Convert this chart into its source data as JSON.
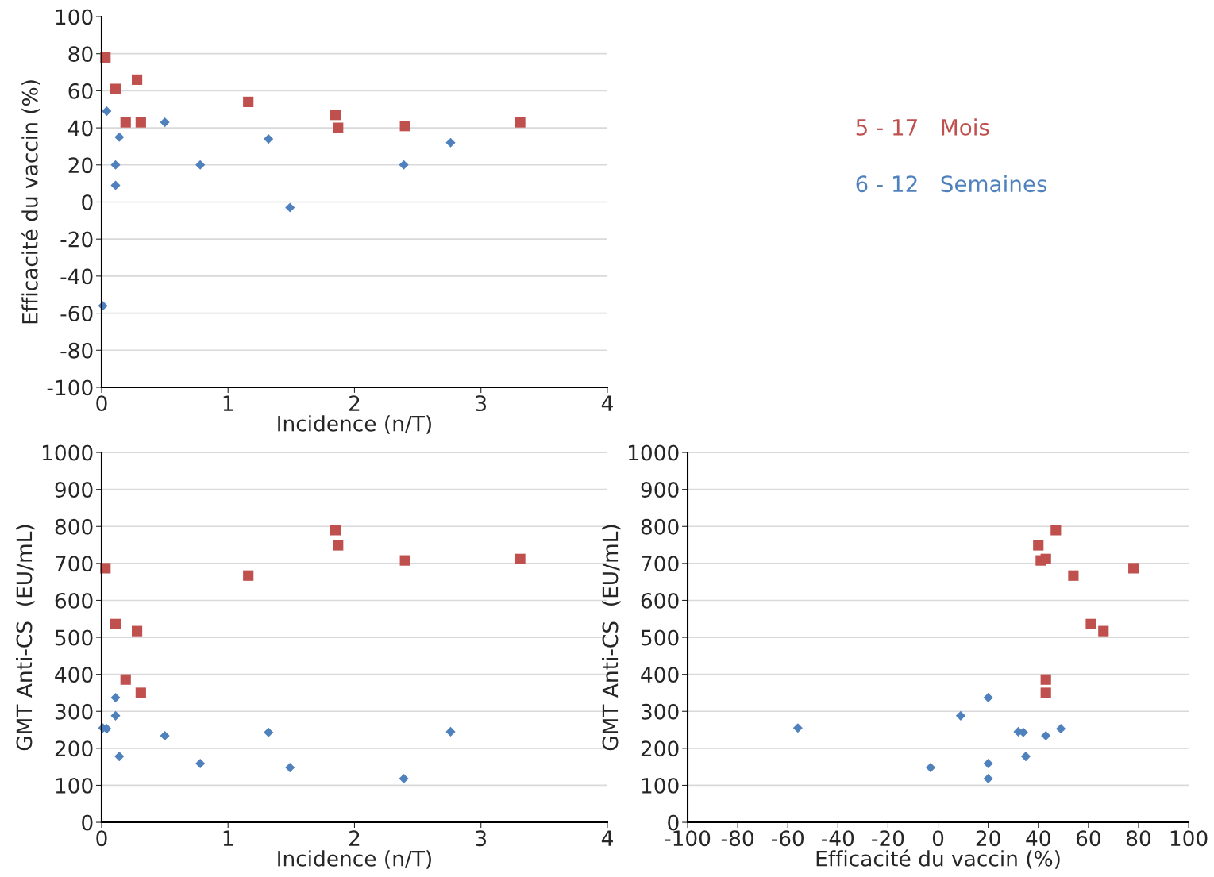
{
  "chart_data": [
    {
      "type": "scatter",
      "xlabel": "Incidence (n/T)",
      "ylabel": "Efficacité du vaccin (%)",
      "xlim": [
        0,
        4
      ],
      "xticks": [
        0,
        1,
        2,
        3,
        4
      ],
      "ylim": [
        -100,
        100
      ],
      "yticks": [
        -100,
        -80,
        -60,
        -40,
        -20,
        0,
        20,
        40,
        60,
        80,
        100
      ],
      "grid": "y",
      "legend": "right",
      "series": [
        {
          "name": "5 - 17   Mois",
          "color": "#c0504d",
          "marker": "square",
          "x": [
            0.03,
            0.11,
            0.28,
            0.19,
            0.31,
            1.16,
            1.85,
            1.87,
            2.4,
            3.31
          ],
          "values": [
            78,
            61,
            66,
            43,
            43,
            54,
            47,
            40,
            41,
            43
          ]
        },
        {
          "name": "6 - 12   Semaines",
          "color": "#4f81bd",
          "marker": "diamond",
          "x": [
            0.01,
            0.04,
            0.11,
            0.11,
            0.14,
            0.5,
            0.78,
            1.32,
            1.49,
            2.39,
            2.76
          ],
          "values": [
            -56,
            49,
            20,
            9,
            35,
            43,
            20,
            34,
            -3,
            20,
            32
          ]
        }
      ]
    },
    {
      "type": "scatter",
      "xlabel": "Incidence (n/T)",
      "ylabel": "GMT Anti-CS  (EU/mL)",
      "xlim": [
        0,
        4
      ],
      "xticks": [
        0,
        1,
        2,
        3,
        4
      ],
      "ylim": [
        0,
        1000
      ],
      "yticks": [
        0,
        100,
        200,
        300,
        400,
        500,
        600,
        700,
        800,
        900,
        1000
      ],
      "grid": "y",
      "series": [
        {
          "color": "#c0504d",
          "marker": "square",
          "x": [
            0.03,
            0.11,
            0.28,
            0.19,
            0.31,
            1.16,
            1.85,
            1.87,
            2.4,
            3.31
          ],
          "values": [
            687,
            536,
            517,
            386,
            350,
            667,
            790,
            749,
            708,
            712
          ]
        },
        {
          "color": "#4f81bd",
          "marker": "diamond",
          "x": [
            0.01,
            0.04,
            0.11,
            0.11,
            0.14,
            0.5,
            0.78,
            1.32,
            1.49,
            2.39,
            2.76
          ],
          "values": [
            255,
            253,
            337,
            288,
            178,
            234,
            159,
            243,
            148,
            118,
            245
          ]
        }
      ]
    },
    {
      "type": "scatter",
      "xlabel": "Efficacité du vaccin (%)",
      "ylabel": "GMT Anti-CS  (EU/mL)",
      "xlim": [
        -100,
        100
      ],
      "xticks": [
        -100,
        -80,
        -60,
        -40,
        -20,
        0,
        20,
        40,
        60,
        80,
        100
      ],
      "ylim": [
        0,
        1000
      ],
      "yticks": [
        0,
        100,
        200,
        300,
        400,
        500,
        600,
        700,
        800,
        900,
        1000
      ],
      "grid": "y",
      "series": [
        {
          "color": "#c0504d",
          "marker": "square",
          "x": [
            78,
            61,
            66,
            43,
            43,
            54,
            47,
            40,
            41,
            43
          ],
          "values": [
            687,
            536,
            517,
            386,
            350,
            667,
            790,
            749,
            708,
            712
          ]
        },
        {
          "color": "#4f81bd",
          "marker": "diamond",
          "x": [
            -56,
            49,
            20,
            9,
            35,
            43,
            20,
            34,
            -3,
            20,
            32
          ],
          "values": [
            255,
            253,
            337,
            288,
            178,
            234,
            159,
            243,
            148,
            118,
            245
          ]
        }
      ]
    }
  ]
}
